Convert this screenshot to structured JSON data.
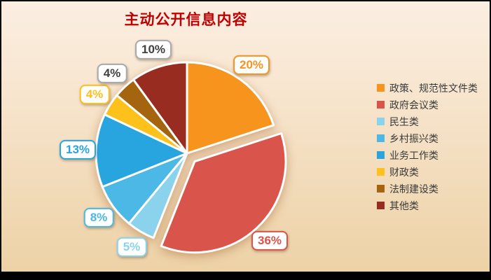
{
  "chart_data": {
    "type": "pie",
    "title": "主动公开信息内容",
    "title_color": "#C00000",
    "legend_position": "right",
    "start_angle": "top",
    "direction": "clockwise",
    "background_gradient": [
      "#FBEEE2",
      "#EDD2A6"
    ],
    "slice_stroke_color": "#FFFFFF",
    "slices": [
      {
        "label": "政策、规范性文件类",
        "value": 20,
        "pct_label": "20%",
        "color": "#F7941E",
        "label_color": "#F7941E",
        "label_border": "#F7941E",
        "exploded": false
      },
      {
        "label": "政府会议类",
        "value": 36,
        "pct_label": "36%",
        "color": "#D9544A",
        "label_color": "#D9544A",
        "label_border": "#D9544A",
        "exploded": true
      },
      {
        "label": "民生类",
        "value": 5,
        "pct_label": "5%",
        "color": "#8BD2EC",
        "label_color": "#8BD2EC",
        "label_border": "#8BD2EC",
        "exploded": false
      },
      {
        "label": "乡村振兴类",
        "value": 8,
        "pct_label": "8%",
        "color": "#4CB8E5",
        "label_color": "#4CB8E5",
        "label_border": "#4CB8E5",
        "exploded": false
      },
      {
        "label": "业务工作类",
        "value": 13,
        "pct_label": "13%",
        "color": "#28A4DF",
        "label_color": "#28A4DF",
        "label_border": "#28A4DF",
        "exploded": false
      },
      {
        "label": "财政类",
        "value": 4,
        "pct_label": "4%",
        "color": "#FCC11A",
        "label_color": "#FCC11A",
        "label_border": "#FCC11A",
        "exploded": false
      },
      {
        "label": "法制建设类",
        "value": 4,
        "pct_label": "4%",
        "color": "#A5650F",
        "label_color": "#414042",
        "label_border": "#A7A9AC",
        "exploded": false
      },
      {
        "label": "其他类",
        "value": 10,
        "pct_label": "10%",
        "color": "#992C20",
        "label_color": "#414042",
        "label_border": "#A7A9AC",
        "exploded": false
      }
    ]
  }
}
